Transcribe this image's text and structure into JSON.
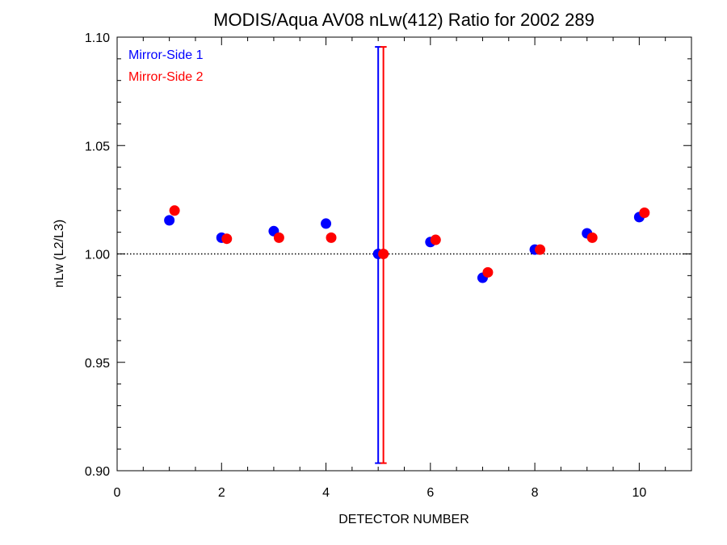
{
  "chart_data": {
    "type": "scatter",
    "title": "MODIS/Aqua AV08 nLw(412) Ratio for 2002 289",
    "xlabel": "DETECTOR NUMBER",
    "ylabel": "nLw (L2/L3)",
    "xlim": [
      0,
      11
    ],
    "ylim": [
      0.9,
      1.1
    ],
    "x_ticks": [
      "0",
      "2",
      "4",
      "6",
      "8",
      "10"
    ],
    "y_ticks": [
      "0.90",
      "0.95",
      "1.00",
      "1.05",
      "1.10"
    ],
    "reference_line": 1.0,
    "legend_position": "top-left",
    "series": [
      {
        "name": "Mirror-Side 1",
        "color": "#0000ff",
        "x": [
          1,
          2,
          3,
          4,
          5,
          6,
          7,
          8,
          9,
          10
        ],
        "y": [
          1.0155,
          1.0075,
          1.0105,
          1.014,
          1.0,
          1.0055,
          0.989,
          1.002,
          1.0095,
          1.017
        ],
        "error_bars": [
          {
            "x": 5,
            "low": 0.9035,
            "high": 1.0955
          }
        ]
      },
      {
        "name": "Mirror-Side 2",
        "color": "#ff0000",
        "x": [
          1.1,
          2.1,
          3.1,
          4.1,
          5.1,
          6.1,
          7.1,
          8.1,
          9.1,
          10.1
        ],
        "y": [
          1.02,
          1.007,
          1.0075,
          1.0075,
          1.0,
          1.0065,
          0.9915,
          1.002,
          1.0075,
          1.019
        ],
        "error_bars": [
          {
            "x": 5.1,
            "low": 0.9035,
            "high": 1.0955
          }
        ]
      }
    ]
  }
}
